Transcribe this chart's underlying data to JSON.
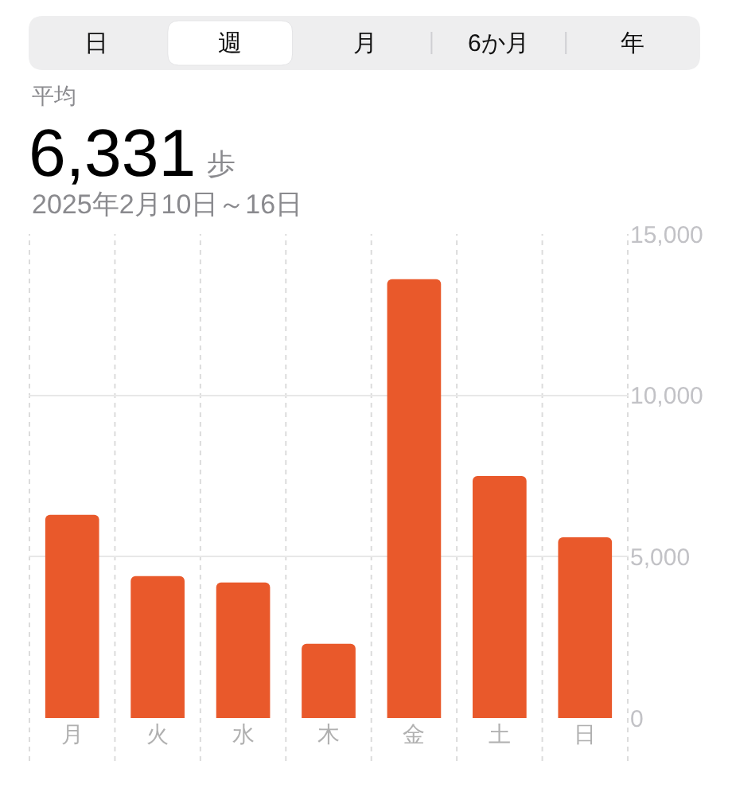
{
  "chart_data": {
    "type": "bar",
    "title": "6,331",
    "subtitle": "2025年2月10日～16日",
    "annotations": [
      "日",
      "週",
      "月",
      "6か月",
      "年",
      "平均",
      "歩"
    ],
    "categories": [
      "月",
      "火",
      "水",
      "木",
      "金",
      "土",
      "日"
    ],
    "values": [
      6300,
      4400,
      4200,
      2300,
      13600,
      7500,
      5600
    ],
    "color": "#e9592b",
    "ylim": [
      0,
      15000
    ],
    "yticks": [
      0,
      {
        "value": 5000,
        "label": "5,000"
      },
      {
        "value": 10000,
        "label": "10,000"
      },
      {
        "value": 15000,
        "label": "15,000"
      }
    ],
    "grid": true
  }
}
